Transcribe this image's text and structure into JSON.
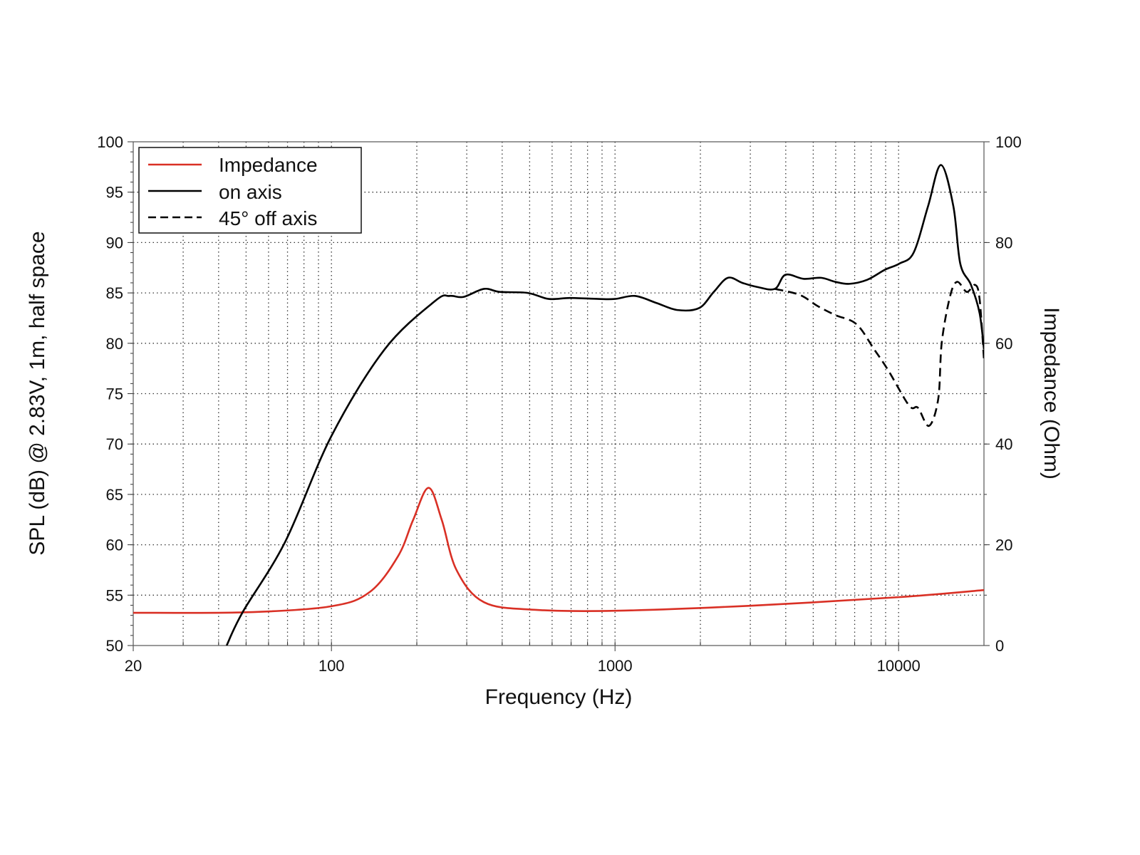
{
  "chart_data": {
    "type": "line",
    "xlabel": "Frequency (Hz)",
    "ylabel": "SPL (dB) @ 2.83V, 1m, half space",
    "y2label": "Impedance (Ohm)",
    "xscale": "log",
    "xlim": [
      20,
      20000
    ],
    "ylim": [
      50,
      100
    ],
    "y2lim": [
      0,
      100
    ],
    "xticks": [
      20,
      100,
      1000,
      10000
    ],
    "yticks": [
      50,
      55,
      60,
      65,
      70,
      75,
      80,
      85,
      90,
      95,
      100
    ],
    "y2ticks": [
      0,
      20,
      40,
      60,
      80,
      100
    ],
    "grid": true,
    "legend_position": "top-left",
    "colors": {
      "impedance": "#d93025",
      "on_axis": "#000000",
      "off_axis": "#000000"
    },
    "series": [
      {
        "name": "Impedance",
        "axis": "right",
        "style": "solid",
        "color": "#d93025",
        "x": [
          20,
          50,
          100,
          137,
          172,
          194,
          220,
          245,
          276,
          345,
          520,
          1000,
          3000,
          10000,
          20000
        ],
        "y": [
          6.5,
          6.6,
          7.8,
          10.7,
          17.8,
          24.9,
          31.3,
          24.9,
          15.0,
          8.6,
          7.1,
          6.9,
          7.9,
          9.6,
          11.0
        ]
      },
      {
        "name": "on axis",
        "axis": "left",
        "style": "solid",
        "color": "#000000",
        "x": [
          42.7,
          48.6,
          68.7,
          100,
          154,
          232,
          261,
          292,
          345,
          392,
          492,
          584,
          694,
          875,
          1000,
          1176,
          1400,
          1660,
          1980,
          2230,
          2500,
          2810,
          3160,
          3660,
          3990,
          4620,
          5330,
          5980,
          6700,
          7750,
          8950,
          10050,
          11300,
          12700,
          14100,
          15600,
          16500,
          18000,
          19300,
          20000
        ],
        "y": [
          50,
          53.3,
          60.3,
          70.8,
          79.4,
          84.2,
          84.7,
          84.6,
          85.4,
          85.1,
          85.0,
          84.4,
          84.5,
          84.4,
          84.4,
          84.7,
          84.0,
          83.3,
          83.5,
          85.1,
          86.5,
          86.0,
          85.6,
          85.4,
          86.8,
          86.4,
          86.5,
          86.1,
          85.9,
          86.3,
          87.3,
          87.9,
          89.0,
          93.6,
          97.7,
          93.6,
          87.9,
          85.8,
          83.0,
          79.4
        ]
      },
      {
        "name": "45° off axis",
        "axis": "left",
        "style": "dashed",
        "color": "#000000",
        "x": [
          3660,
          4480,
          5180,
          5980,
          7100,
          8200,
          9200,
          10900,
          11700,
          12800,
          13800,
          14200,
          15200,
          16100,
          17400,
          18600,
          19300,
          20000
        ],
        "y": [
          85.4,
          84.8,
          83.7,
          82.8,
          81.9,
          79.4,
          77.3,
          73.8,
          73.6,
          71.8,
          74.5,
          80.1,
          84.7,
          86.1,
          85.1,
          85.8,
          84.4,
          78.4
        ]
      }
    ]
  }
}
